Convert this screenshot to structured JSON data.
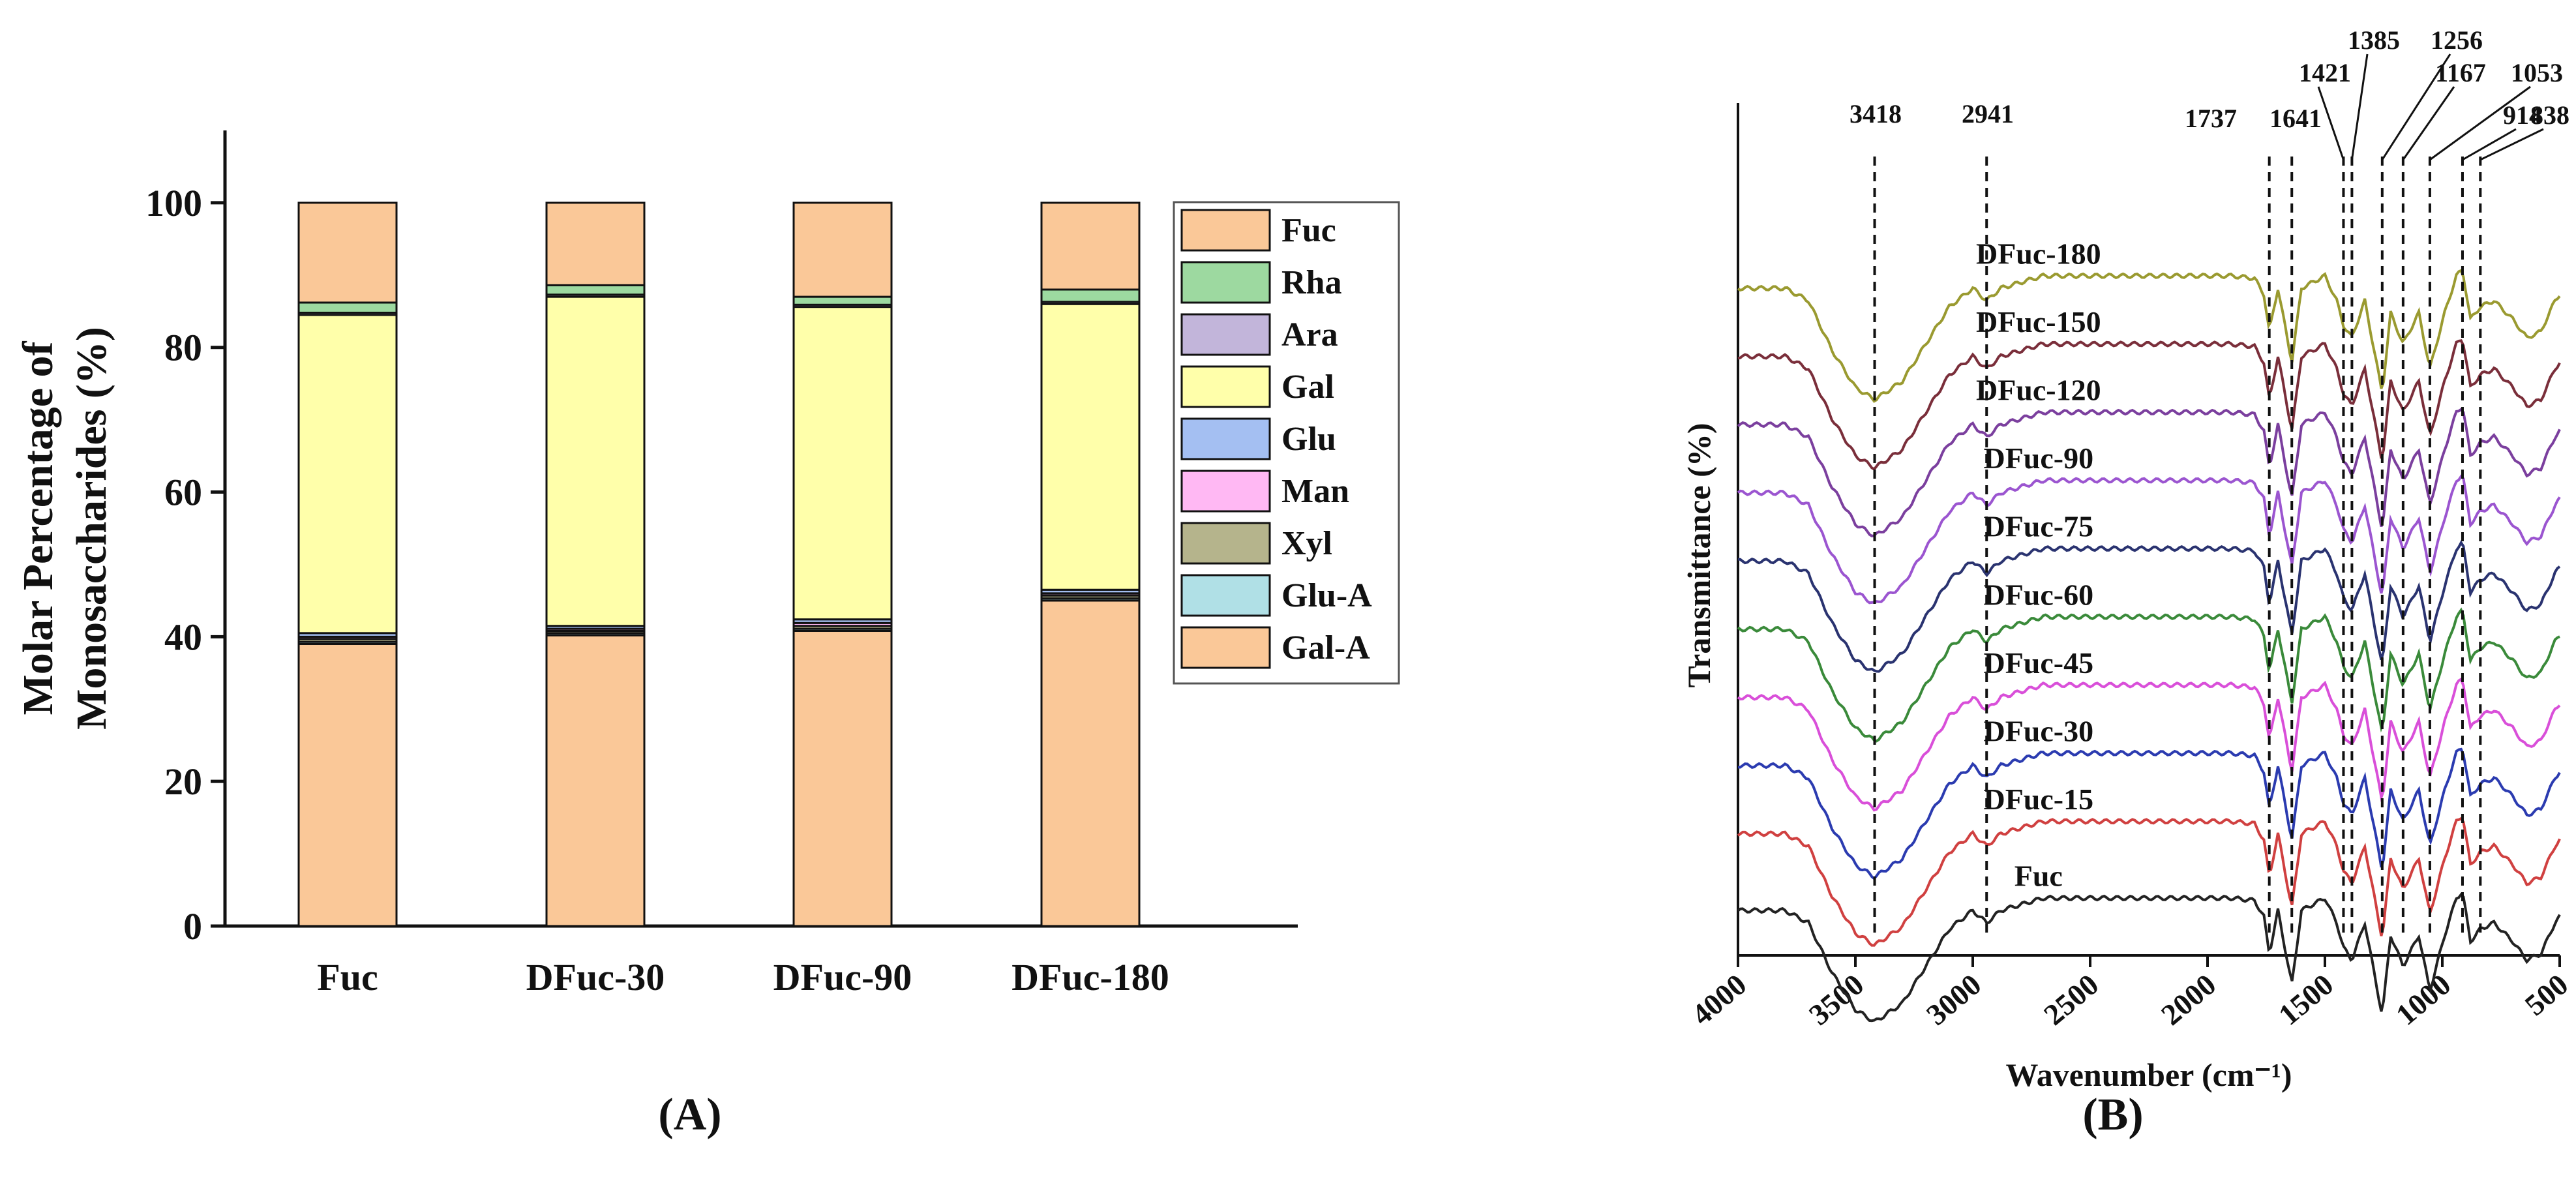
{
  "panel_a_label": "(A)",
  "panel_b_label": "(B)",
  "chart_data": [
    {
      "type": "bar",
      "stacked": true,
      "ylabel_line1": "Molar Percentage of",
      "ylabel_line2": "Monosaccharides (%)",
      "ylim": [
        0,
        110
      ],
      "yticks": [
        0,
        20,
        40,
        60,
        80,
        100
      ],
      "categories": [
        "Fuc",
        "DFuc-30",
        "DFuc-90",
        "DFuc-180"
      ],
      "legend_position": "right",
      "series": [
        {
          "name": "Gal-A",
          "color": "#FAC898",
          "values": [
            39.0,
            40.2,
            40.8,
            45.0
          ]
        },
        {
          "name": "Glu-A",
          "color": "#B0E0E6",
          "values": [
            0.3,
            0.3,
            0.3,
            0.3
          ]
        },
        {
          "name": "Xyl",
          "color": "#B5B48C",
          "values": [
            0.4,
            0.3,
            0.4,
            0.4
          ]
        },
        {
          "name": "Man",
          "color": "#FFB8F3",
          "values": [
            0.3,
            0.3,
            0.4,
            0.3
          ]
        },
        {
          "name": "Glu",
          "color": "#A4BFF2",
          "values": [
            0.5,
            0.4,
            0.5,
            0.5
          ]
        },
        {
          "name": "Gal",
          "color": "#FFFFAA",
          "values": [
            44.0,
            45.5,
            43.2,
            39.5
          ]
        },
        {
          "name": "Ara",
          "color": "#C2B5DA",
          "values": [
            0.3,
            0.3,
            0.3,
            0.3
          ]
        },
        {
          "name": "Rha",
          "color": "#9DD9A0",
          "values": [
            1.4,
            1.3,
            1.1,
            1.7
          ]
        },
        {
          "name": "Fuc",
          "color": "#FAC898",
          "values": [
            13.8,
            11.4,
            13.0,
            12.0
          ]
        }
      ],
      "legend_order": [
        "Fuc",
        "Rha",
        "Ara",
        "Gal",
        "Glu",
        "Man",
        "Xyl",
        "Glu-A",
        "Gal-A"
      ],
      "legend_colors": {
        "Fuc": "#FAC898",
        "Rha": "#9DD9A0",
        "Ara": "#C2B5DA",
        "Gal": "#FFFFAA",
        "Glu": "#A4BFF2",
        "Man": "#FFB8F3",
        "Xyl": "#B5B48C",
        "Glu-A": "#B0E0E6",
        "Gal-A": "#FAC898"
      }
    },
    {
      "type": "line",
      "xlabel": "Wavenumber (cm⁻¹)",
      "ylabel": "Transmittance (%)",
      "xlim": [
        4000,
        500
      ],
      "xticks": [
        4000,
        3500,
        3000,
        2500,
        2000,
        1500,
        1000,
        500
      ],
      "peak_markers": [
        3418,
        2941,
        1737,
        1641,
        1421,
        1385,
        1256,
        1167,
        1053,
        914,
        838
      ],
      "peak_labels": [
        "3418",
        "2941",
        "1737",
        "1641",
        "1421",
        "1385",
        "1256",
        "1167",
        "1053",
        "914",
        "838"
      ],
      "spectrum_shape": [
        [
          4000,
          0.1
        ],
        [
          3800,
          0.1
        ],
        [
          3700,
          0.2
        ],
        [
          3600,
          0.6
        ],
        [
          3500,
          0.9
        ],
        [
          3418,
          1.0
        ],
        [
          3300,
          0.85
        ],
        [
          3200,
          0.55
        ],
        [
          3100,
          0.25
        ],
        [
          3000,
          0.1
        ],
        [
          2941,
          0.2
        ],
        [
          2880,
          0.1
        ],
        [
          2700,
          0.0
        ],
        [
          2500,
          0.0
        ],
        [
          2200,
          0.0
        ],
        [
          1900,
          0.0
        ],
        [
          1800,
          0.02
        ],
        [
          1760,
          0.15
        ],
        [
          1737,
          0.45
        ],
        [
          1700,
          0.1
        ],
        [
          1641,
          0.7
        ],
        [
          1600,
          0.1
        ],
        [
          1500,
          0.0
        ],
        [
          1450,
          0.2
        ],
        [
          1421,
          0.4
        ],
        [
          1385,
          0.5
        ],
        [
          1330,
          0.2
        ],
        [
          1256,
          0.95
        ],
        [
          1220,
          0.3
        ],
        [
          1167,
          0.55
        ],
        [
          1100,
          0.3
        ],
        [
          1053,
          0.75
        ],
        [
          990,
          0.3
        ],
        [
          940,
          0.0
        ],
        [
          914,
          -0.05
        ],
        [
          880,
          0.35
        ],
        [
          838,
          0.25
        ],
        [
          780,
          0.2
        ],
        [
          700,
          0.35
        ],
        [
          640,
          0.5
        ],
        [
          580,
          0.45
        ],
        [
          520,
          0.2
        ],
        [
          500,
          0.15
        ]
      ],
      "series": [
        {
          "name": "Fuc",
          "color": "#222222",
          "baseline_pct": 94
        },
        {
          "name": "DFuc-15",
          "color": "#D04040",
          "baseline_pct": 85
        },
        {
          "name": "DFuc-30",
          "color": "#2B3BB0",
          "baseline_pct": 77
        },
        {
          "name": "DFuc-45",
          "color": "#D94FD9",
          "baseline_pct": 69
        },
        {
          "name": "DFuc-60",
          "color": "#3A8A3A",
          "baseline_pct": 61
        },
        {
          "name": "DFuc-75",
          "color": "#2A3370",
          "baseline_pct": 53
        },
        {
          "name": "DFuc-90",
          "color": "#9B55D0",
          "baseline_pct": 45
        },
        {
          "name": "DFuc-120",
          "color": "#7B3F9E",
          "baseline_pct": 37
        },
        {
          "name": "DFuc-150",
          "color": "#7A2E3A",
          "baseline_pct": 29
        },
        {
          "name": "DFuc-180",
          "color": "#9A9A30",
          "baseline_pct": 21
        }
      ]
    }
  ]
}
